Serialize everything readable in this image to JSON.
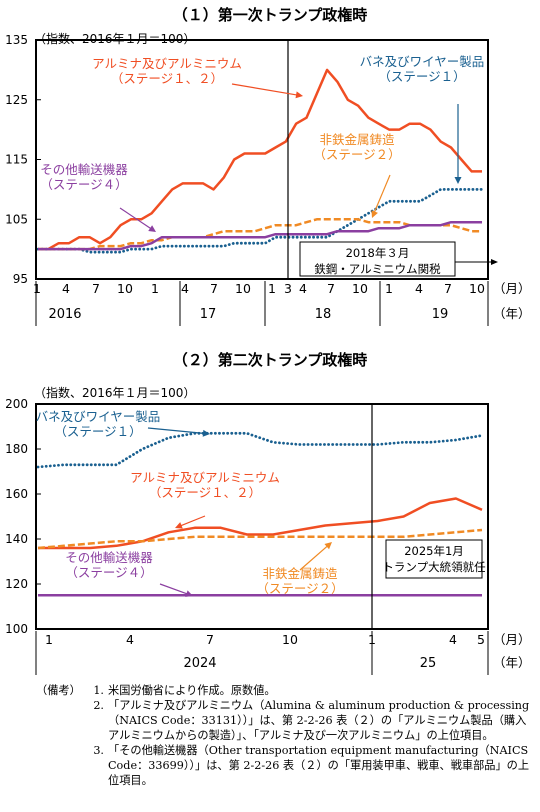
{
  "chart_data": [
    {
      "type": "line",
      "title": "（１）第一次トランプ政権時",
      "unit_label": "（指数、2016年１月＝100）",
      "ylim": [
        95,
        135
      ],
      "yticks": [
        95,
        105,
        115,
        125,
        135
      ],
      "x_tick_labels": [
        "1",
        "4",
        "7",
        "10",
        "1",
        "4",
        "7",
        "10",
        "1",
        "3",
        "4",
        "7",
        "10",
        "1",
        "4",
        "7",
        "10"
      ],
      "year_labels": [
        "2016",
        "17",
        "18",
        "19"
      ],
      "x_unit_labels": [
        "（月）",
        "（年）"
      ],
      "event_annotation": [
        "2018年３月",
        "鉄鋼・アルミニウム関税"
      ],
      "series": [
        {
          "name": "アルミナ及びアルミニウム（ステージ１、２）",
          "color": "#f04e23",
          "style": "solid",
          "values": [
            100,
            100,
            101,
            101,
            102,
            102,
            101,
            102,
            104,
            105,
            105,
            106,
            108,
            110,
            111,
            111,
            111,
            110,
            112,
            115,
            116,
            116,
            116,
            117,
            118,
            121,
            122,
            126,
            130,
            128,
            125,
            124,
            122,
            121,
            120,
            120,
            121,
            121,
            120,
            118,
            117,
            115,
            113,
            113
          ]
        },
        {
          "name": "バネ及びワイヤー製品（ステージ１）",
          "color": "#1a6090",
          "style": "dotted",
          "values": [
            100,
            100,
            100,
            100,
            100,
            99.5,
            99.5,
            99.5,
            99.5,
            100,
            100,
            100,
            100.5,
            100.5,
            100.5,
            100.5,
            100.5,
            100.5,
            100.5,
            101,
            101,
            101,
            101,
            102,
            102,
            102,
            102,
            102,
            102,
            103,
            104,
            105,
            106,
            107,
            108,
            108,
            108,
            108,
            109,
            110,
            110,
            110,
            110,
            110
          ]
        },
        {
          "name": "非鉄金属鋳造（ステージ２）",
          "color": "#f08a24",
          "style": "dashed",
          "values": [
            100,
            100,
            100,
            100,
            100,
            100,
            100.5,
            100.5,
            100.5,
            101,
            101,
            101.5,
            101.5,
            102,
            102,
            102,
            102,
            102.5,
            103,
            103,
            103,
            103,
            103.5,
            104,
            104,
            104,
            104.5,
            105,
            105,
            105,
            105,
            105,
            104.5,
            104.5,
            104.5,
            104.5,
            104,
            104,
            104,
            104,
            104,
            103.5,
            103,
            103
          ]
        },
        {
          "name": "その他輸送機器（ステージ４）",
          "color": "#8b3fa0",
          "style": "solid",
          "values": [
            100,
            100,
            100,
            100,
            100,
            100,
            100,
            100,
            100,
            100.5,
            100.5,
            101,
            102,
            102,
            102,
            102,
            102,
            102,
            102,
            102,
            102,
            102,
            102,
            102.5,
            102.5,
            102.5,
            102.5,
            102.5,
            102.5,
            103,
            103,
            103,
            103,
            103.5,
            103.5,
            103.5,
            104,
            104,
            104,
            104,
            104.5,
            104.5,
            104.5,
            104.5
          ]
        }
      ]
    },
    {
      "type": "line",
      "title": "（２）第二次トランプ政権時",
      "unit_label": "（指数、2016年１月＝100）",
      "ylim": [
        100,
        200
      ],
      "yticks": [
        100,
        120,
        140,
        160,
        180,
        200
      ],
      "x_tick_labels": [
        "1",
        "4",
        "7",
        "10",
        "1",
        "4",
        "5"
      ],
      "year_labels": [
        "2024",
        "25"
      ],
      "x_unit_labels": [
        "（月）",
        "（年）"
      ],
      "event_annotation": [
        "2025年1月",
        "トランプ大統領就任"
      ],
      "series": [
        {
          "name": "バネ及びワイヤー製品（ステージ１）",
          "color": "#1a6090",
          "style": "dotted",
          "values": [
            172,
            173,
            173,
            173,
            180,
            185,
            187,
            187,
            187,
            183,
            182,
            182,
            182,
            182,
            183,
            183,
            184,
            186
          ]
        },
        {
          "name": "アルミナ及びアルミニウム（ステージ１、２）",
          "color": "#f04e23",
          "style": "solid",
          "values": [
            136,
            136,
            136,
            137,
            139,
            143,
            145,
            145,
            142,
            142,
            144,
            146,
            147,
            148,
            150,
            156,
            158,
            153
          ]
        },
        {
          "name": "非鉄金属鋳造（ステージ２）",
          "color": "#f08a24",
          "style": "dashed",
          "values": [
            136,
            137,
            138,
            139,
            139,
            140,
            141,
            141,
            141,
            141,
            141,
            141,
            141,
            141,
            141,
            142,
            143,
            144
          ]
        },
        {
          "name": "その他輸送機器（ステージ４）",
          "color": "#8b3fa0",
          "style": "solid",
          "values": [
            115,
            115,
            115,
            115,
            115,
            115,
            115,
            115,
            115,
            115,
            115,
            115,
            115,
            115,
            115,
            115,
            115,
            115
          ]
        }
      ]
    }
  ],
  "notes": {
    "label": "（備考）",
    "items": [
      {
        "num": "1.",
        "text": "米国労働省により作成。原数値。"
      },
      {
        "num": "2.",
        "text": "「アルミナ及びアルミニウム（Alumina & aluminum production & processing（NAICS Code：33131））」は、第 2-2-26 表（２）の「アルミニウム製品（購入アルミニウムからの製造）」、「アルミナ及び一次アルミニウム」の上位項目。"
      },
      {
        "num": "3.",
        "text": "「その他輸送機器（Other transportation equipment manufacturing（NAICS Code：33699））」は、第 2-2-26 表（２）の「軍用装甲車、戦車、戦車部品」の上位項目。"
      }
    ]
  }
}
